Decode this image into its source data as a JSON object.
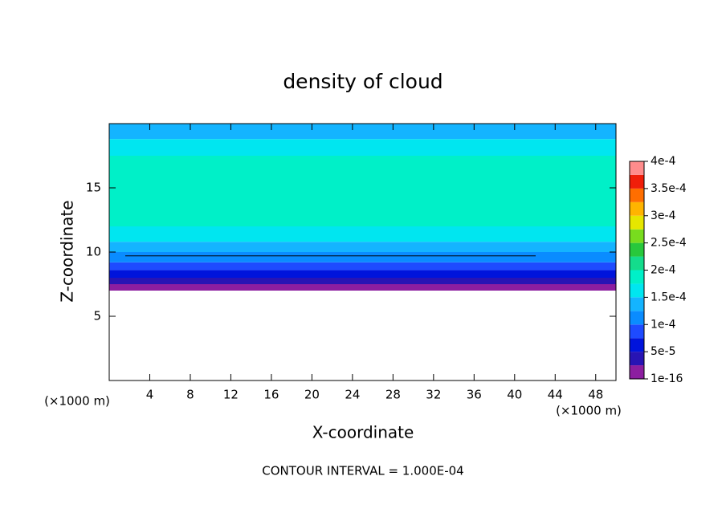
{
  "chart_data": {
    "type": "contour",
    "title": "density of cloud",
    "xlabel": "X-coordinate",
    "ylabel": "Z-coordinate",
    "x_unit": "(×1000 m)",
    "note": "CONTOUR INTERVAL = 1.000E-04",
    "xlim": [
      0,
      50
    ],
    "xticks": [
      4,
      8,
      12,
      16,
      20,
      24,
      28,
      32,
      36,
      40,
      44,
      48
    ],
    "ylim": [
      0,
      20
    ],
    "yticks": [
      5,
      10,
      15
    ],
    "field": {
      "z_bottom": [
        7.0,
        7.5,
        8.0,
        8.6,
        9.2,
        10.0,
        10.8,
        12.0,
        17.5,
        18.8
      ],
      "z_top": [
        7.5,
        8.0,
        8.6,
        9.2,
        10.0,
        10.8,
        12.0,
        17.5,
        18.8,
        20.0
      ],
      "values": [
        1e-05,
        3e-05,
        6e-05,
        8.5e-05,
        0.00011,
        0.000135,
        0.00016,
        0.00018,
        0.00016,
        0.000135
      ]
    },
    "contour_lines": [
      {
        "value": 0.0001,
        "z": 9.7
      }
    ],
    "colorbar": {
      "colors": [
        "#8c1ea0",
        "#2814b4",
        "#0014dc",
        "#1e4bff",
        "#0a8cff",
        "#14b4ff",
        "#00e6f0",
        "#00f0c8",
        "#14dc8c",
        "#28c83c",
        "#78dc1e",
        "#e6e600",
        "#ffb400",
        "#ff6e00",
        "#f01e0a",
        "#ff8c8c"
      ],
      "ticks": [
        {
          "value": 1e-16,
          "label": "1e-16"
        },
        {
          "value": 5e-05,
          "label": "5e-5"
        },
        {
          "value": 0.0001,
          "label": "1e-4"
        },
        {
          "value": 0.00015,
          "label": "1.5e-4"
        },
        {
          "value": 0.0002,
          "label": "2e-4"
        },
        {
          "value": 0.00025,
          "label": "2.5e-4"
        },
        {
          "value": 0.0003,
          "label": "3e-4"
        },
        {
          "value": 0.00035,
          "label": "3.5e-4"
        },
        {
          "value": 0.0004,
          "label": "4e-4"
        }
      ]
    }
  }
}
